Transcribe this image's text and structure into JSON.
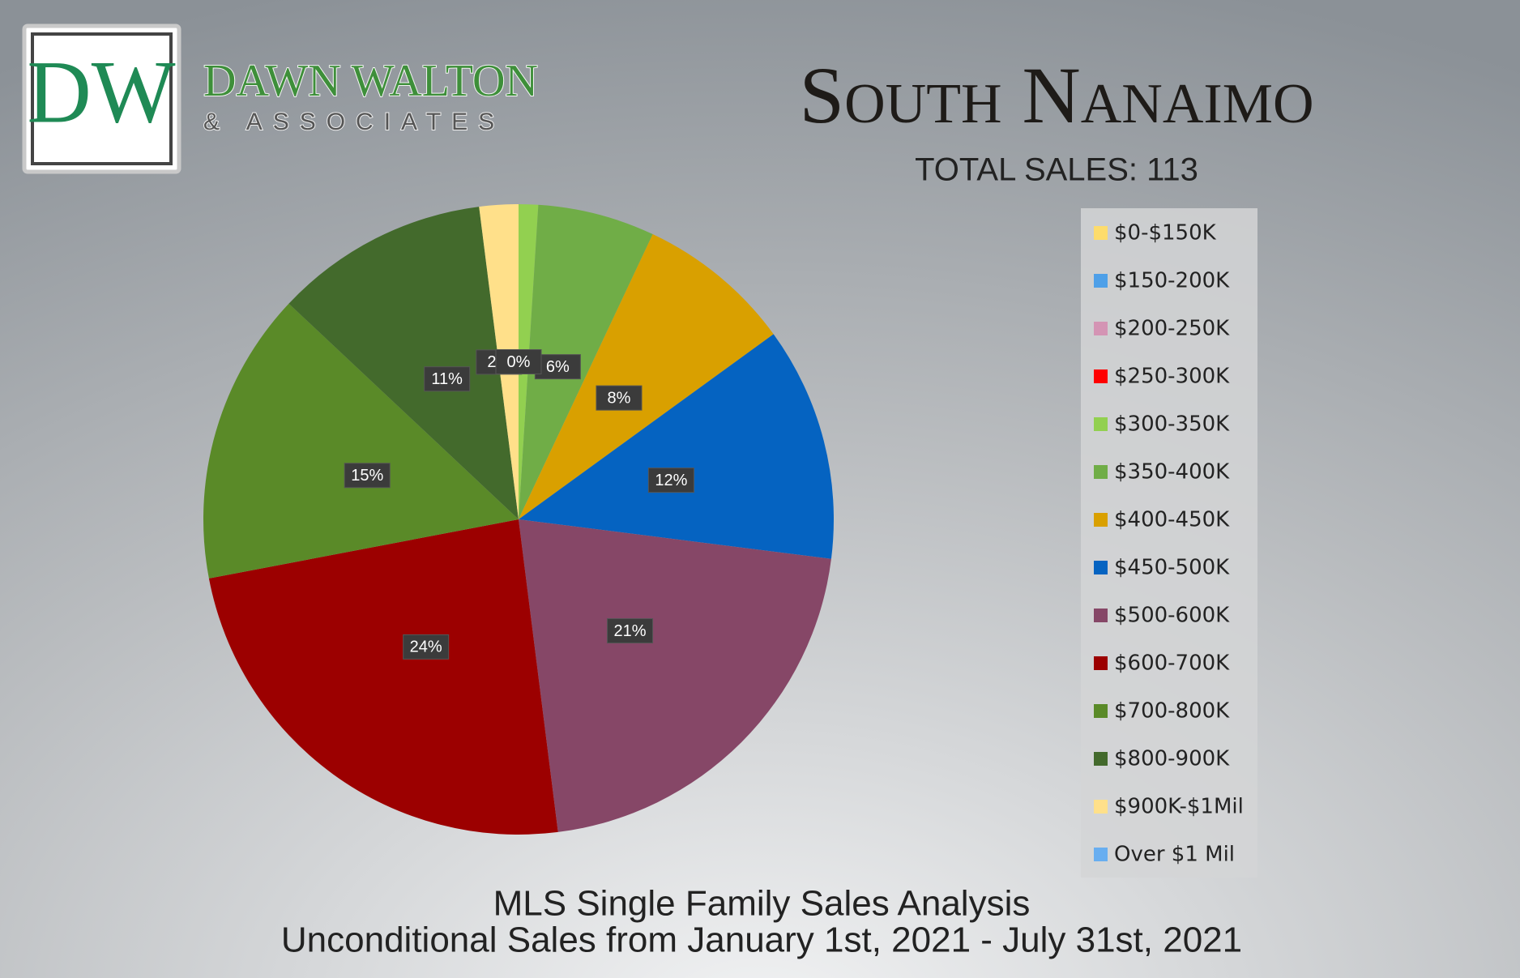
{
  "header": {
    "logo_initials": "DW",
    "brand": "DAWN WALTON",
    "brand_sub": "& ASSOCIATES"
  },
  "chart_data": {
    "type": "pie",
    "title": "South Nanaimo",
    "subtitle": "TOTAL SALES: 113",
    "footer": [
      "MLS Single Family Sales Analysis",
      "Unconditional Sales from January 1st, 2021 - July 31st, 2021"
    ],
    "categories": [
      "$0-$150K",
      "$150-200K",
      "$200-250K",
      "$250-300K",
      "$300-350K",
      "$350-400K",
      "$400-450K",
      "$450-500K",
      "$500-600K",
      "$600-700K",
      "$700-800K",
      "$800-900K",
      "$900K-$1Mil",
      "Over $1 Mil"
    ],
    "values": [
      0,
      0,
      0,
      0,
      1,
      6,
      8,
      12,
      21,
      24,
      15,
      11,
      2,
      0
    ],
    "value_labels": [
      "0%",
      null,
      null,
      null,
      null,
      "6%",
      "8%",
      "12%",
      "21%",
      "24%",
      "15%",
      "11%",
      "2%",
      null
    ],
    "colors": [
      "#fddc6c",
      "#4ea0e8",
      "#d494b4",
      "#ff0000",
      "#92d050",
      "#70ad47",
      "#d9a000",
      "#0563c1",
      "#864767",
      "#9c0000",
      "#5a8a28",
      "#436a2c",
      "#ffe08a",
      "#68aef0"
    ],
    "legend": "right"
  }
}
